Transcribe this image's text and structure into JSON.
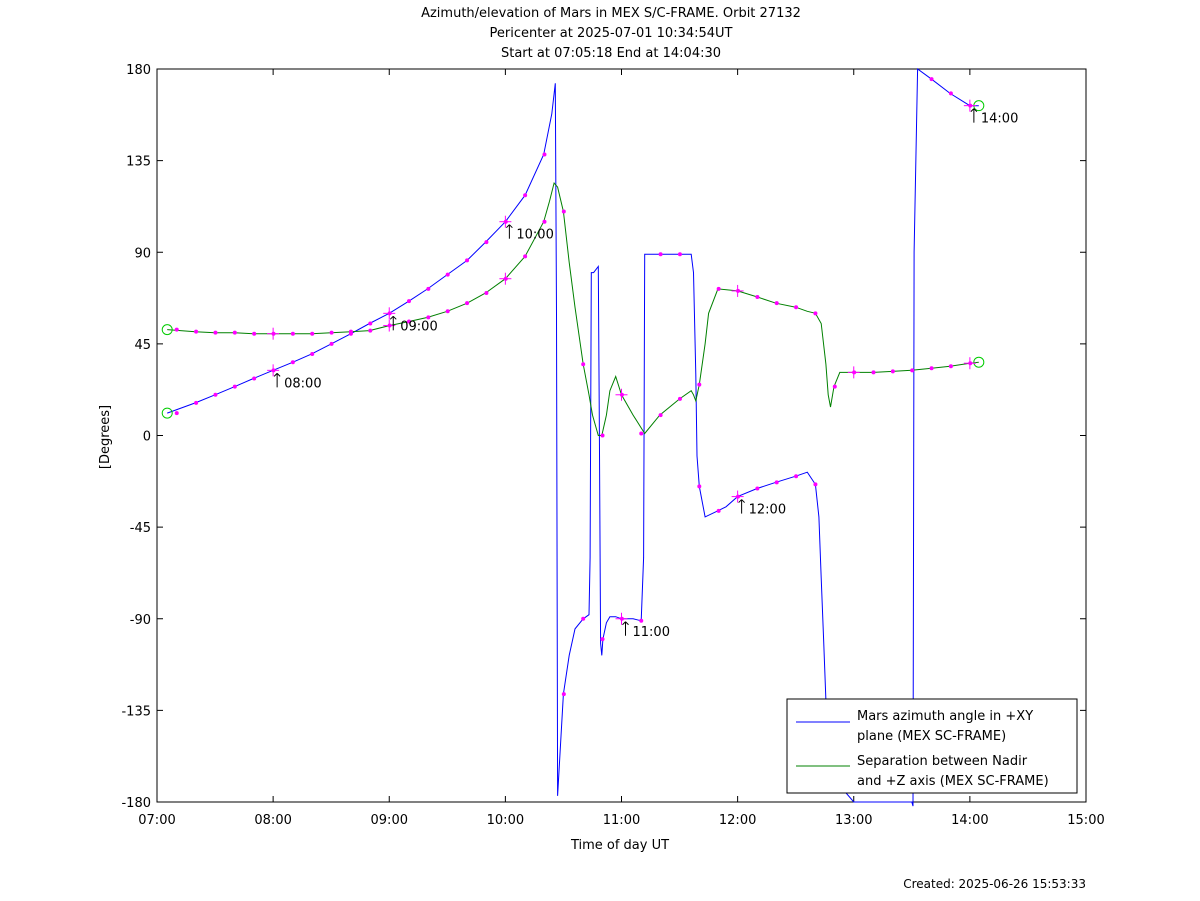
{
  "chart_data": {
    "type": "line",
    "title_lines": [
      "Azimuth/elevation of Mars in MEX S/C-FRAME.  Orbit 27132",
      "Pericenter at 2025-07-01 10:34:54UT",
      "Start at 07:05:18 End at 14:04:30"
    ],
    "xlabel": "Time of day UT",
    "ylabel": "[Degrees]",
    "xlim": [
      7.0,
      15.0
    ],
    "ylim": [
      -180,
      180
    ],
    "x_ticks": [
      7,
      8,
      9,
      10,
      11,
      12,
      13,
      14,
      15
    ],
    "x_tick_labels": [
      "07:00",
      "08:00",
      "09:00",
      "10:00",
      "11:00",
      "12:00",
      "13:00",
      "14:00",
      "15:00"
    ],
    "y_ticks": [
      180,
      135,
      90,
      45,
      0,
      -45,
      -90,
      -135,
      -180
    ],
    "y_tick_labels": [
      "180",
      "135",
      "90",
      "45",
      "0",
      "-45",
      "-90",
      "-135",
      "-180"
    ],
    "grid": false,
    "legend_position": "bottom-right",
    "series": [
      {
        "name": "Mars azimuth angle in +XY plane (MEX SC-FRAME)",
        "legend_lines": [
          "Mars azimuth angle in +XY",
          "plane (MEX SC-FRAME)"
        ],
        "color": "#0000ff",
        "x": [
          7.088,
          7.33,
          7.5,
          7.67,
          7.83,
          8.0,
          8.17,
          8.33,
          8.5,
          8.67,
          8.83,
          9.0,
          9.17,
          9.33,
          9.5,
          9.67,
          9.83,
          10.0,
          10.17,
          10.33,
          10.4,
          10.43,
          10.44,
          10.45,
          10.5,
          10.55,
          10.6,
          10.67,
          10.72,
          10.73,
          10.74,
          10.76,
          10.8,
          10.81,
          10.82,
          10.83,
          10.84,
          10.87,
          10.9,
          10.95,
          11.0,
          11.1,
          11.17,
          11.19,
          11.2,
          11.21,
          11.22,
          11.33,
          11.5,
          11.55,
          11.6,
          11.62,
          11.64,
          11.65,
          11.67,
          11.72,
          11.83,
          11.9,
          12.0,
          12.17,
          12.33,
          12.5,
          12.6,
          12.67,
          12.7,
          12.72,
          12.74,
          12.76,
          12.78,
          12.85,
          13.0,
          13.2,
          13.4,
          13.48,
          13.5,
          13.51,
          13.52,
          13.55,
          13.67,
          13.83,
          14.0,
          14.077
        ],
        "y": [
          11,
          16,
          20,
          24,
          28,
          32,
          36,
          40,
          45,
          50,
          55,
          60,
          66,
          72,
          79,
          86,
          95,
          105,
          118,
          138,
          158,
          173,
          60,
          -177,
          -127,
          -108,
          -95,
          -90,
          -88,
          -60,
          80,
          80,
          83,
          0,
          -102,
          -108,
          -100,
          -92,
          -89,
          -89,
          -90,
          -90,
          -91,
          -60,
          89,
          89,
          89,
          89,
          89,
          89,
          89,
          80,
          30,
          -10,
          -25,
          -40,
          -37,
          -35,
          -30,
          -26,
          -23,
          -20,
          -18,
          -24,
          -40,
          -70,
          -100,
          -130,
          -150,
          -170,
          -180,
          -180,
          -180,
          -180,
          -180,
          -182,
          90,
          180,
          175,
          168,
          162,
          162
        ]
      },
      {
        "name": "Separation between Nadir and +Z axis (MEX SC-FRAME)",
        "legend_lines": [
          "Separation between Nadir",
          "and +Z axis (MEX SC-FRAME)"
        ],
        "color": "#008000",
        "x": [
          7.088,
          7.33,
          7.5,
          7.67,
          7.83,
          8.0,
          8.17,
          8.33,
          8.5,
          8.67,
          8.83,
          9.0,
          9.17,
          9.33,
          9.5,
          9.67,
          9.83,
          10.0,
          10.17,
          10.33,
          10.38,
          10.42,
          10.45,
          10.5,
          10.55,
          10.6,
          10.67,
          10.72,
          10.75,
          10.8,
          10.83,
          10.87,
          10.9,
          10.95,
          11.0,
          11.1,
          11.2,
          11.33,
          11.5,
          11.6,
          11.62,
          11.64,
          11.67,
          11.72,
          11.75,
          11.83,
          12.0,
          12.17,
          12.33,
          12.5,
          12.6,
          12.67,
          12.72,
          12.76,
          12.78,
          12.8,
          12.83,
          12.88,
          13.0,
          13.17,
          13.33,
          13.5,
          13.67,
          13.83,
          14.0,
          14.077
        ],
        "y": [
          52,
          51,
          50.5,
          50.5,
          50,
          50,
          50,
          50,
          50.5,
          51,
          51.5,
          54,
          56,
          58,
          61,
          65,
          70,
          77,
          88,
          105,
          115,
          124,
          122,
          110,
          85,
          63,
          35,
          20,
          10,
          0,
          0,
          10,
          22,
          29,
          20,
          10,
          1,
          10,
          18,
          22,
          20,
          17,
          25,
          45,
          60,
          72,
          71,
          68,
          65,
          63,
          61,
          60,
          55,
          35,
          20,
          14,
          24,
          31,
          31,
          31,
          31.5,
          32,
          33,
          34,
          35.5,
          36
        ]
      }
    ],
    "annotations": [
      "08:00",
      "09:00",
      "10:00",
      "11:00",
      "12:00",
      "14:00"
    ],
    "footer": "Created: 2025-06-26 15:53:33"
  }
}
